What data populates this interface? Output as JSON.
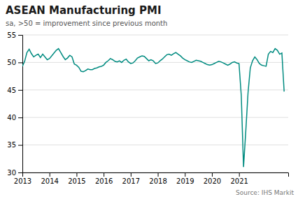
{
  "chart_data": {
    "type": "line",
    "title": "ASEAN Manufacturing PMI",
    "subtitle": "sa, >50 = improvement  since previous month",
    "annotations": [
      "Source: IHS Markit"
    ],
    "color": "#008B80",
    "grid": true,
    "xlim": [
      2013.0,
      2022.8166666666666
    ],
    "xticks": [
      2013,
      2014,
      2015,
      2016,
      2017,
      2018,
      2019,
      2020,
      2021
    ],
    "ylim": [
      30,
      55
    ],
    "yticks": [
      30,
      35,
      40,
      45,
      50,
      55
    ],
    "x": [
      2013.0,
      2013.0833333333333,
      2013.1666666666667,
      2013.25,
      2013.3333333333333,
      2013.4166666666667,
      2013.5,
      2013.5833333333333,
      2013.6666666666667,
      2013.75,
      2013.8333333333333,
      2013.9166666666667,
      2014.0,
      2014.0833333333333,
      2014.1666666666667,
      2014.25,
      2014.3333333333333,
      2014.4166666666667,
      2014.5,
      2014.5833333333333,
      2014.6666666666667,
      2014.75,
      2014.8333333333333,
      2014.9166666666667,
      2015.0,
      2015.0833333333333,
      2015.1666666666667,
      2015.25,
      2015.3333333333333,
      2015.4166666666667,
      2015.5,
      2015.5833333333333,
      2015.6666666666667,
      2015.75,
      2015.8333333333333,
      2015.9166666666667,
      2016.0,
      2016.0833333333333,
      2016.1666666666667,
      2016.25,
      2016.3333333333333,
      2016.4166666666667,
      2016.5,
      2016.5833333333333,
      2016.6666666666667,
      2016.75,
      2016.8333333333333,
      2016.9166666666667,
      2017.0,
      2017.0833333333333,
      2017.1666666666667,
      2017.25,
      2017.3333333333333,
      2017.4166666666667,
      2017.5,
      2017.5833333333333,
      2017.6666666666667,
      2017.75,
      2017.8333333333333,
      2017.9166666666667,
      2018.0,
      2018.0833333333333,
      2018.1666666666667,
      2018.25,
      2018.3333333333333,
      2018.4166666666667,
      2018.5,
      2018.5833333333333,
      2018.6666666666667,
      2018.75,
      2018.8333333333333,
      2018.9166666666667,
      2019.0,
      2019.0833333333333,
      2019.1666666666667,
      2019.25,
      2019.3333333333333,
      2019.4166666666667,
      2019.5,
      2019.5833333333333,
      2019.6666666666667,
      2019.75,
      2019.8333333333333,
      2019.9166666666667,
      2020.0,
      2020.0833333333333,
      2020.1666666666667,
      2020.25,
      2020.3333333333333,
      2020.4166666666667,
      2020.5,
      2020.5833333333333,
      2020.6666666666667,
      2020.75,
      2020.8333333333333,
      2020.9166666666667,
      2021.0,
      2021.0833333333333,
      2021.1666666666667,
      2021.25,
      2021.3333333333333,
      2021.4166666666667,
      2021.5,
      2021.5833333333333,
      2021.6666666666667,
      2021.75,
      2021.8333333333333,
      2021.9166666666667,
      2022.0,
      2022.0833333333333,
      2022.1666666666667,
      2022.25,
      2022.3333333333333,
      2022.4166666666667,
      2022.5,
      2022.5833333333333,
      2022.6666666666667
    ],
    "values": [
      49.3,
      50.2,
      51.8,
      52.4,
      51.6,
      51.0,
      51.3,
      51.5,
      50.9,
      51.5,
      51.0,
      50.5,
      50.7,
      51.2,
      51.7,
      52.2,
      52.5,
      51.8,
      51.1,
      50.5,
      50.8,
      51.3,
      51.0,
      49.7,
      49.5,
      49.1,
      48.4,
      48.3,
      48.5,
      48.8,
      48.7,
      48.7,
      48.9,
      49.0,
      49.2,
      49.3,
      49.5,
      50.0,
      50.3,
      50.7,
      50.5,
      50.2,
      50.1,
      50.3,
      50.0,
      50.4,
      50.6,
      50.1,
      49.8,
      49.9,
      50.3,
      50.8,
      51.0,
      51.2,
      51.1,
      50.7,
      50.3,
      50.5,
      50.3,
      49.8,
      49.9,
      50.3,
      50.6,
      51.0,
      51.4,
      51.5,
      51.3,
      51.6,
      51.8,
      51.5,
      51.2,
      50.8,
      50.5,
      50.3,
      50.1,
      50.0,
      50.2,
      50.4,
      50.3,
      50.2,
      50.0,
      49.8,
      49.6,
      49.5,
      49.6,
      49.8,
      50.0,
      50.2,
      50.1,
      49.9,
      49.7,
      49.5,
      49.7,
      50.0,
      50.1,
      49.9,
      49.8,
      44.0,
      31.0,
      37.5,
      44.5,
      49.0,
      50.3,
      51.0,
      50.5,
      49.8,
      49.5,
      49.4,
      49.3,
      51.5,
      52.0,
      51.8,
      52.5,
      52.2,
      51.5,
      51.7,
      44.7
    ]
  }
}
